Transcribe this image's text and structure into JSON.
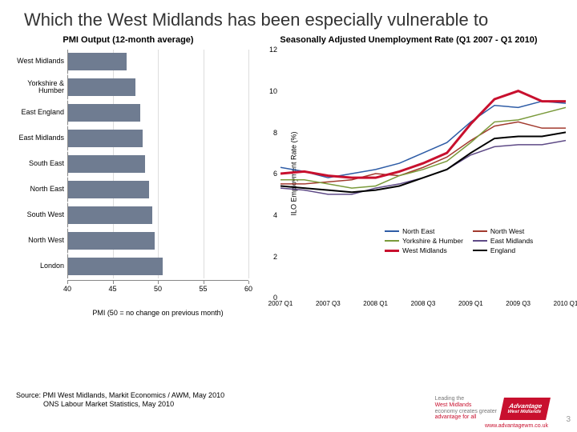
{
  "title": "Which the West Midlands has been especially vulnerable to",
  "bar_chart": {
    "title": "PMI Output (12-month average)",
    "xlabel": "PMI (50 = no change on previous month)",
    "xlim": [
      40,
      60
    ],
    "xtick_step": 5,
    "bar_color": "#6f7c91",
    "grid_color": "#dddddd",
    "categories": [
      {
        "label": "West Midlands",
        "value": 46.5
      },
      {
        "label": "Yorkshire & Humber",
        "value": 47.5
      },
      {
        "label": "East England",
        "value": 48.0
      },
      {
        "label": "East Midlands",
        "value": 48.3
      },
      {
        "label": "South East",
        "value": 48.5
      },
      {
        "label": "North East",
        "value": 49.0
      },
      {
        "label": "South West",
        "value": 49.3
      },
      {
        "label": "North West",
        "value": 49.6
      },
      {
        "label": "London",
        "value": 50.5
      }
    ]
  },
  "line_chart": {
    "title": "Seasonally Adjusted Unemployment Rate (Q1 2007 - Q1 2010)",
    "ylabel": "ILO Employment Rate (%)",
    "ylim": [
      0,
      12
    ],
    "ytick_step": 2,
    "x_labels": [
      "2007 Q1",
      "2007 Q3",
      "2008 Q1",
      "2008 Q3",
      "2009 Q1",
      "2009 Q3",
      "2010 Q1"
    ],
    "series": [
      {
        "name": "North East",
        "color": "#2e5ca6",
        "width": 1.5,
        "values": [
          6.3,
          6.1,
          5.8,
          6.0,
          6.2,
          6.5,
          7.0,
          7.5,
          8.5,
          9.3,
          9.2,
          9.5,
          9.4
        ]
      },
      {
        "name": "North West",
        "color": "#a23a2e",
        "width": 1.5,
        "values": [
          5.5,
          5.5,
          5.6,
          5.7,
          6.0,
          5.9,
          6.3,
          6.8,
          7.6,
          8.3,
          8.5,
          8.2,
          8.2
        ]
      },
      {
        "name": "Yorkshire & Humber",
        "color": "#7a9a3b",
        "width": 1.5,
        "values": [
          5.7,
          5.7,
          5.5,
          5.3,
          5.4,
          5.9,
          6.2,
          6.6,
          7.5,
          8.5,
          8.6,
          8.9,
          9.2
        ]
      },
      {
        "name": "East Midlands",
        "color": "#5e4a86",
        "width": 1.5,
        "values": [
          5.3,
          5.2,
          5.0,
          5.0,
          5.3,
          5.5,
          5.8,
          6.2,
          6.9,
          7.3,
          7.4,
          7.4,
          7.6
        ]
      },
      {
        "name": "West Midlands",
        "color": "#c8102e",
        "width": 3,
        "values": [
          6.0,
          6.1,
          5.9,
          5.8,
          5.8,
          6.1,
          6.5,
          7.0,
          8.4,
          9.6,
          10.0,
          9.5,
          9.5
        ]
      },
      {
        "name": "England",
        "color": "#000000",
        "width": 2,
        "values": [
          5.4,
          5.3,
          5.2,
          5.1,
          5.2,
          5.4,
          5.8,
          6.2,
          7.0,
          7.7,
          7.8,
          7.8,
          8.0
        ]
      }
    ],
    "legend_pos": {
      "left_pct": 36,
      "top_pct": 71
    }
  },
  "source": {
    "line1": "Source: PMI West Midlands, Markit Economics / AWM, May 2010",
    "line2": "ONS Labour Market Statistics, May 2010"
  },
  "logo": {
    "tag1": "Leading the",
    "tag2": "West Midlands",
    "tag3": "economy creates greater",
    "tag4": "advantage for all",
    "brand1": "Advantage",
    "brand2": "West Midlands",
    "url": "www.advantagewm.co.uk"
  },
  "slide_number": "3"
}
